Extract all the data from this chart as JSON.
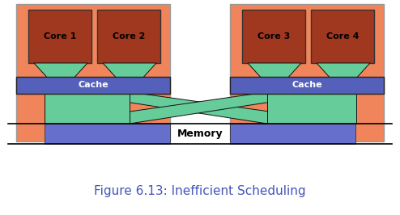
{
  "title": "Figure 6.13: Inefficient Scheduling",
  "title_color": "#4455bb",
  "title_fontsize": 11,
  "bg_color": "#ffffff",
  "salmon_bg": "#f0845a",
  "core_color": "#a03820",
  "cache_color": "#5560bb",
  "memory_color": "#6670cc",
  "green_color": "#66cc99",
  "green_edge": "#111111",
  "cpu1_label": "Core 1",
  "cpu2_label": "Core 2",
  "cpu3_label": "Core 3",
  "cpu4_label": "Core 4",
  "cache1_label": "Cache",
  "cache2_label": "Cache",
  "memory_label": "Memory"
}
